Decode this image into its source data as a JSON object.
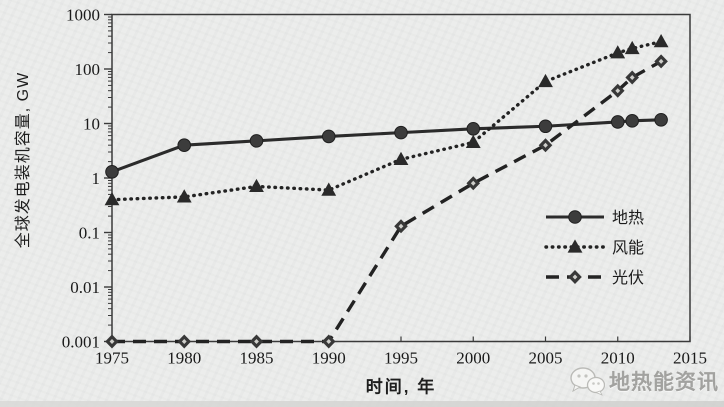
{
  "page": {
    "background": "#ecedec",
    "watermark": {
      "text": "地热能资讯",
      "icon": "wechat-icon"
    }
  },
  "chart_data": {
    "type": "line",
    "title": "",
    "xlabel": "时间, 年",
    "ylabel": "全球发电装机容量, GW",
    "x_scale": "linear",
    "y_scale": "log",
    "xlim": [
      1975,
      2015
    ],
    "ylim": [
      0.001,
      1000
    ],
    "grid": false,
    "x_tick_labels": [
      "1975",
      "1980",
      "1985",
      "1990",
      "1995",
      "2000",
      "2005",
      "2010",
      "2015"
    ],
    "x_ticks": [
      1975,
      1980,
      1985,
      1990,
      1995,
      2000,
      2005,
      2010,
      2015
    ],
    "y_tick_labels": [
      "1000",
      "100",
      "10",
      "1",
      "0.1",
      "0.01",
      "0.001"
    ],
    "y_ticks": [
      1000,
      100,
      10,
      1,
      0.1,
      0.01,
      0.001
    ],
    "x": [
      1975,
      1980,
      1985,
      1990,
      1995,
      2000,
      2005,
      2010,
      2011,
      2013
    ],
    "series": [
      {
        "name": "地热",
        "line_style": "solid",
        "marker": "circle",
        "values": [
          1.3,
          4.0,
          4.8,
          5.8,
          6.8,
          8.0,
          8.9,
          10.7,
          11.2,
          11.7
        ]
      },
      {
        "name": "风能",
        "line_style": "dotted",
        "marker": "triangle",
        "values": [
          0.4,
          0.45,
          0.7,
          0.6,
          2.2,
          4.5,
          59,
          198,
          238,
          318
        ]
      },
      {
        "name": "光伏",
        "line_style": "dashed",
        "marker": "diamond",
        "values": [
          0.001,
          0.001,
          0.001,
          0.001,
          0.13,
          0.8,
          4,
          40,
          70,
          138
        ]
      }
    ],
    "legend_position": "inside-right-middle",
    "line_color": "#2b2b2b"
  }
}
